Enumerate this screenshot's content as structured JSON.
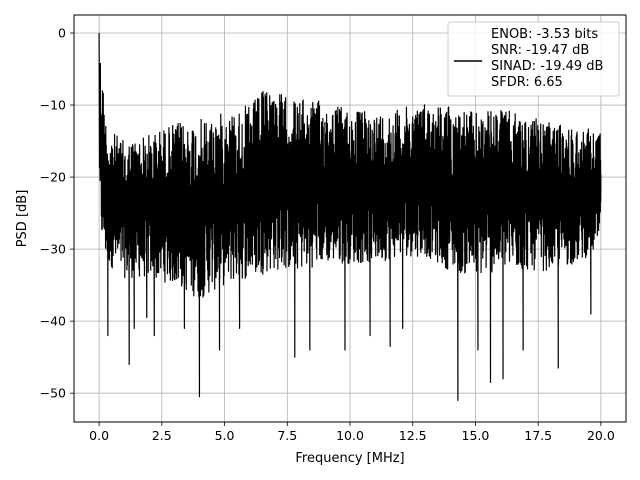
{
  "chart_data": {
    "type": "line",
    "title": "",
    "xlabel": "Frequency [MHz]",
    "ylabel": "PSD [dB]",
    "xlim": [
      -1,
      21
    ],
    "ylim": [
      -54,
      2.5
    ],
    "xticks": [
      0.0,
      2.5,
      5.0,
      7.5,
      10.0,
      12.5,
      15.0,
      17.5,
      20.0
    ],
    "xtick_labels": [
      "0.0",
      "2.5",
      "5.0",
      "7.5",
      "10.0",
      "12.5",
      "15.0",
      "17.5",
      "20.0"
    ],
    "yticks": [
      0,
      -10,
      -20,
      -30,
      -40,
      -50
    ],
    "ytick_labels": [
      "0",
      "−10",
      "−20",
      "−30",
      "−40",
      "−50"
    ],
    "grid": true,
    "legend_position": "top-right",
    "line_color": "#000000",
    "series": [
      {
        "legend_lines": [
          "ENOB: -3.53 bits",
          "SNR: -19.47 dB",
          "SINAD: -19.49 dB",
          "SFDR: 6.65"
        ],
        "x_start": 0,
        "x_end": 20,
        "peak": {
          "x": 0.0,
          "y": 0
        },
        "envelope_top": [
          [
            0.0,
            0
          ],
          [
            0.3,
            -13
          ],
          [
            1.0,
            -15
          ],
          [
            2.0,
            -14
          ],
          [
            3.0,
            -12.5
          ],
          [
            4.0,
            -12
          ],
          [
            5.0,
            -11
          ],
          [
            6.0,
            -10
          ],
          [
            6.8,
            -7
          ],
          [
            7.5,
            -9
          ],
          [
            9.0,
            -9.5
          ],
          [
            10.0,
            -10.5
          ],
          [
            11.0,
            -11
          ],
          [
            12.0,
            -10.5
          ],
          [
            13.0,
            -9.5
          ],
          [
            14.0,
            -10
          ],
          [
            15.0,
            -11
          ],
          [
            16.0,
            -10.5
          ],
          [
            17.0,
            -11.5
          ],
          [
            18.0,
            -12.5
          ],
          [
            19.0,
            -13
          ],
          [
            20.0,
            -13.5
          ]
        ],
        "envelope_bottom": [
          [
            0.0,
            -28
          ],
          [
            0.3,
            -32
          ],
          [
            1.0,
            -34
          ],
          [
            2.0,
            -34
          ],
          [
            3.0,
            -35
          ],
          [
            4.0,
            -37
          ],
          [
            5.0,
            -35
          ],
          [
            6.0,
            -34
          ],
          [
            7.0,
            -33
          ],
          [
            8.0,
            -33
          ],
          [
            9.0,
            -32
          ],
          [
            10.0,
            -32
          ],
          [
            11.0,
            -32
          ],
          [
            12.0,
            -31
          ],
          [
            13.0,
            -31
          ],
          [
            14.0,
            -33
          ],
          [
            15.0,
            -34
          ],
          [
            16.0,
            -33
          ],
          [
            17.0,
            -33
          ],
          [
            18.0,
            -33
          ],
          [
            19.0,
            -32
          ],
          [
            20.0,
            -30
          ]
        ],
        "deep_dips": [
          [
            0.35,
            -40.5
          ],
          [
            0.35,
            -42
          ],
          [
            1.2,
            -46
          ],
          [
            1.4,
            -41
          ],
          [
            1.9,
            -39.5
          ],
          [
            2.2,
            -42
          ],
          [
            3.4,
            -41
          ],
          [
            4.0,
            -50.5
          ],
          [
            4.8,
            -44
          ],
          [
            5.6,
            -41
          ],
          [
            7.8,
            -45
          ],
          [
            8.4,
            -44
          ],
          [
            9.8,
            -44
          ],
          [
            10.8,
            -42
          ],
          [
            11.6,
            -43.5
          ],
          [
            12.1,
            -41
          ],
          [
            14.3,
            -51
          ],
          [
            15.1,
            -44
          ],
          [
            15.6,
            -48.5
          ],
          [
            16.1,
            -48
          ],
          [
            16.9,
            -44
          ],
          [
            18.3,
            -46.5
          ],
          [
            19.6,
            -39
          ]
        ]
      }
    ]
  }
}
